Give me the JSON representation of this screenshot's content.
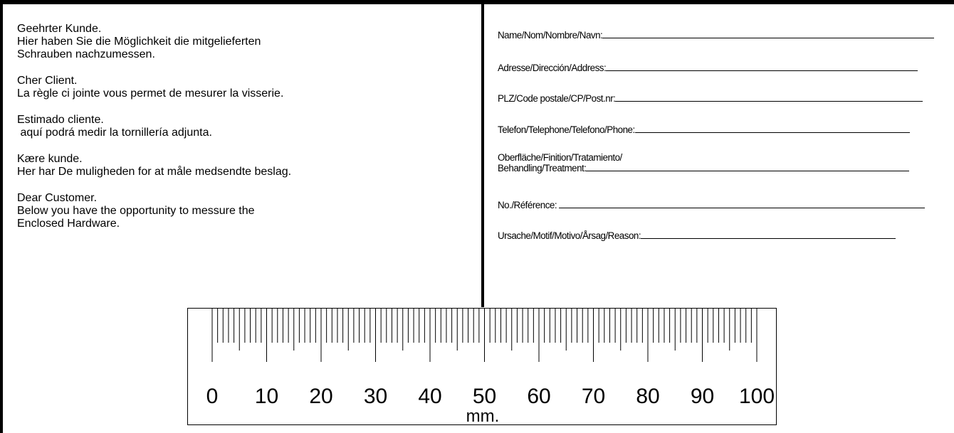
{
  "greetings": [
    {
      "lines": [
        "Geehrter Kunde.",
        "Hier haben Sie die Möglichkeit die mitgelieferten",
        "Schrauben nachzumessen."
      ]
    },
    {
      "lines": [
        "Cher Client.",
        "La règle ci jointe vous permet de mesurer la visserie."
      ]
    },
    {
      "lines": [
        "Estimado cliente.",
        " aquí podrá medir la tornillería adjunta."
      ]
    },
    {
      "lines": [
        "Kære kunde.",
        "Her har De muligheden for at måle medsendte beslag."
      ]
    },
    {
      "lines": [
        "Dear Customer.",
        "Below you have the opportunity to messure the",
        "Enclosed Hardware."
      ]
    }
  ],
  "form_fields": [
    {
      "label": "Name/Nom/Nombre/Navn:"
    },
    {
      "label": "Adresse/Dirección/Address:"
    },
    {
      "label": "PLZ/Code postale/CP/Post.nr:"
    },
    {
      "label": "Telefon/Telephone/Telefono/Phone:"
    },
    {
      "label_lines": [
        "Oberfläche/Finition/Tratamiento/",
        "Behandling/Treatment:"
      ]
    },
    {
      "label": "No./Référence: "
    },
    {
      "label": "Ursache/Motif/Motivo/Årsag/Reason:"
    }
  ],
  "ruler": {
    "labels": [
      "0",
      "10",
      "20",
      "30",
      "40",
      "50",
      "60",
      "70",
      "80",
      "90",
      "100"
    ],
    "unit": "mm.",
    "range_mm": [
      0,
      100
    ]
  }
}
